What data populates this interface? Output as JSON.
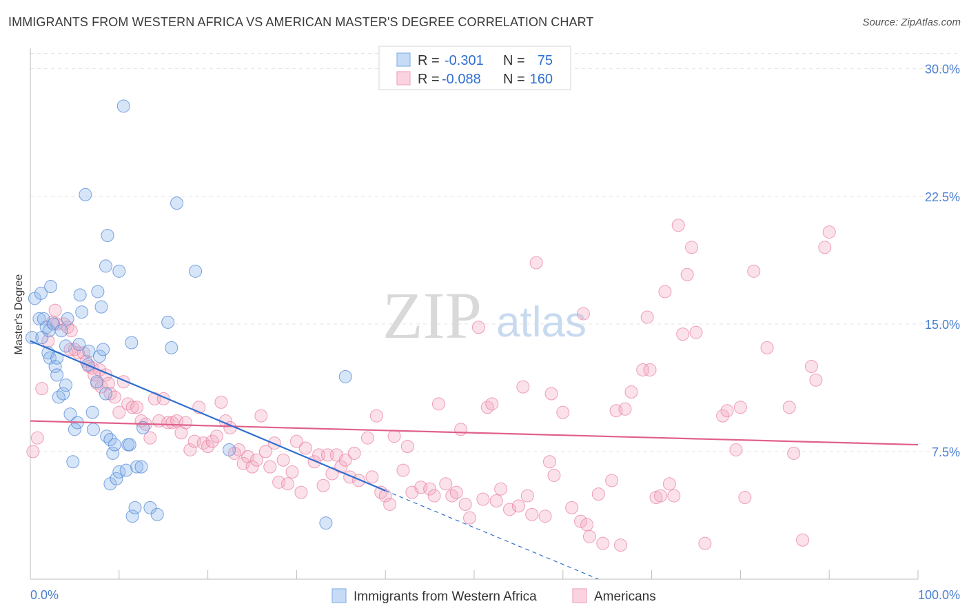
{
  "chart_data": {
    "type": "scatter",
    "title": "IMMIGRANTS FROM WESTERN AFRICA VS AMERICAN MASTER'S DEGREE CORRELATION CHART",
    "source": "Source: ZipAtlas.com",
    "xlabel": "",
    "ylabel": "Master's Degree",
    "xlim": [
      0,
      100
    ],
    "ylim": [
      0,
      31
    ],
    "x_tick_labels": [
      "0.0%",
      "100.0%"
    ],
    "y_ticks": [
      7.5,
      15.0,
      22.5,
      30.0
    ],
    "y_tick_labels": [
      "7.5%",
      "15.0%",
      "22.5%",
      "30.0%"
    ],
    "watermark": {
      "zip": "ZIP",
      "atlas": "atlas"
    },
    "legend": {
      "r_label": "R =",
      "n_label": "N =",
      "entries": [
        {
          "r": "-0.301",
          "n": "75",
          "color": "#8ab4ea"
        },
        {
          "r": "-0.088",
          "n": "160",
          "color": "#f4a8c0"
        }
      ]
    },
    "series": [
      {
        "name": "Immigrants from Western Africa",
        "color": "#8ab4ea",
        "line_color": "#2f6fd0",
        "trend": {
          "x0": 0,
          "y0": 14.0,
          "x1": 40,
          "y1": 5.2,
          "dash_to_x": 64,
          "dash_to_y": 0
        },
        "points": [
          [
            0.2,
            14.2
          ],
          [
            0.5,
            16.5
          ],
          [
            1.0,
            15.3
          ],
          [
            1.2,
            16.8
          ],
          [
            1.3,
            14.2
          ],
          [
            1.5,
            15.3
          ],
          [
            1.8,
            14.8
          ],
          [
            2.1,
            14.6
          ],
          [
            2.0,
            13.3
          ],
          [
            2.2,
            13.0
          ],
          [
            2.3,
            17.2
          ],
          [
            2.6,
            15.0
          ],
          [
            2.8,
            12.5
          ],
          [
            3.0,
            13.0
          ],
          [
            3.0,
            12.0
          ],
          [
            3.2,
            10.7
          ],
          [
            3.5,
            14.6
          ],
          [
            3.7,
            10.9
          ],
          [
            4.0,
            13.7
          ],
          [
            4.0,
            11.4
          ],
          [
            4.2,
            15.3
          ],
          [
            4.5,
            9.7
          ],
          [
            4.8,
            6.9
          ],
          [
            5.0,
            8.8
          ],
          [
            5.3,
            9.2
          ],
          [
            5.5,
            13.8
          ],
          [
            5.6,
            16.7
          ],
          [
            5.8,
            15.7
          ],
          [
            6.2,
            22.6
          ],
          [
            6.5,
            12.6
          ],
          [
            6.6,
            13.4
          ],
          [
            7.0,
            9.8
          ],
          [
            7.1,
            8.8
          ],
          [
            7.5,
            11.6
          ],
          [
            7.6,
            16.9
          ],
          [
            7.8,
            13.1
          ],
          [
            8.0,
            16.0
          ],
          [
            8.2,
            13.5
          ],
          [
            8.5,
            10.9
          ],
          [
            8.5,
            18.4
          ],
          [
            8.6,
            8.4
          ],
          [
            8.7,
            20.2
          ],
          [
            9.0,
            8.2
          ],
          [
            9.0,
            5.6
          ],
          [
            9.3,
            7.4
          ],
          [
            9.5,
            7.9
          ],
          [
            9.7,
            5.9
          ],
          [
            10.0,
            6.3
          ],
          [
            10.0,
            18.1
          ],
          [
            10.5,
            27.8
          ],
          [
            10.8,
            6.4
          ],
          [
            11.0,
            7.9
          ],
          [
            11.2,
            7.9
          ],
          [
            11.4,
            13.9
          ],
          [
            11.5,
            3.7
          ],
          [
            11.8,
            4.2
          ],
          [
            12.0,
            6.6
          ],
          [
            12.5,
            6.6
          ],
          [
            12.7,
            8.9
          ],
          [
            13.5,
            4.2
          ],
          [
            14.3,
            3.8
          ],
          [
            15.5,
            15.1
          ],
          [
            15.9,
            13.6
          ],
          [
            16.5,
            22.1
          ],
          [
            18.6,
            18.1
          ],
          [
            22.4,
            7.6
          ],
          [
            33.3,
            3.3
          ],
          [
            35.5,
            11.9
          ]
        ]
      },
      {
        "name": "Americans",
        "color": "#f4a8c0",
        "line_color": "#e0608a",
        "trend": {
          "x0": 0,
          "y0": 9.3,
          "x1": 100,
          "y1": 7.9
        },
        "points": [
          [
            0.3,
            7.5
          ],
          [
            0.8,
            8.3
          ],
          [
            1.3,
            11.2
          ],
          [
            2.0,
            14.0
          ],
          [
            2.5,
            15.1
          ],
          [
            2.8,
            15.8
          ],
          [
            3.0,
            15.0
          ],
          [
            3.8,
            15.0
          ],
          [
            4.2,
            14.8
          ],
          [
            4.5,
            13.5
          ],
          [
            4.6,
            14.6
          ],
          [
            5.0,
            13.5
          ],
          [
            5.4,
            13.3
          ],
          [
            6.0,
            13.3
          ],
          [
            6.3,
            12.8
          ],
          [
            6.6,
            12.5
          ],
          [
            7.0,
            12.4
          ],
          [
            7.2,
            12.0
          ],
          [
            7.5,
            11.5
          ],
          [
            7.8,
            12.3
          ],
          [
            8.0,
            11.3
          ],
          [
            8.5,
            12.0
          ],
          [
            8.8,
            11.5
          ],
          [
            9.0,
            10.9
          ],
          [
            9.5,
            10.7
          ],
          [
            10.0,
            9.8
          ],
          [
            10.5,
            11.6
          ],
          [
            11.0,
            10.3
          ],
          [
            11.5,
            10.1
          ],
          [
            12.0,
            10.1
          ],
          [
            12.5,
            9.3
          ],
          [
            13.0,
            9.1
          ],
          [
            13.5,
            8.3
          ],
          [
            14.0,
            10.6
          ],
          [
            14.5,
            9.3
          ],
          [
            15.0,
            10.6
          ],
          [
            15.5,
            9.2
          ],
          [
            16.0,
            9.2
          ],
          [
            16.5,
            9.3
          ],
          [
            17.0,
            8.6
          ],
          [
            17.5,
            9.2
          ],
          [
            18.0,
            7.6
          ],
          [
            18.5,
            8.1
          ],
          [
            19.0,
            10.1
          ],
          [
            19.5,
            8.0
          ],
          [
            20.0,
            7.8
          ],
          [
            20.5,
            8.1
          ],
          [
            21.0,
            8.4
          ],
          [
            21.5,
            10.4
          ],
          [
            22.0,
            9.3
          ],
          [
            22.5,
            8.9
          ],
          [
            23.0,
            7.4
          ],
          [
            23.5,
            7.6
          ],
          [
            24.0,
            6.8
          ],
          [
            24.5,
            7.2
          ],
          [
            25.0,
            6.6
          ],
          [
            25.5,
            7.0
          ],
          [
            26.0,
            9.6
          ],
          [
            26.5,
            7.5
          ],
          [
            27.0,
            6.6
          ],
          [
            27.5,
            8.0
          ],
          [
            28.0,
            5.7
          ],
          [
            28.5,
            7.0
          ],
          [
            29.0,
            5.6
          ],
          [
            29.5,
            6.3
          ],
          [
            30.0,
            8.1
          ],
          [
            30.5,
            5.1
          ],
          [
            31.0,
            7.7
          ],
          [
            32.0,
            6.9
          ],
          [
            32.5,
            7.3
          ],
          [
            33.0,
            5.5
          ],
          [
            33.5,
            7.3
          ],
          [
            34.0,
            6.2
          ],
          [
            34.5,
            7.3
          ],
          [
            35.0,
            6.6
          ],
          [
            35.5,
            7.0
          ],
          [
            36.0,
            6.0
          ],
          [
            36.5,
            7.4
          ],
          [
            37.0,
            5.8
          ],
          [
            38.0,
            8.3
          ],
          [
            38.5,
            6.0
          ],
          [
            39.0,
            9.6
          ],
          [
            39.5,
            5.1
          ],
          [
            40.0,
            4.9
          ],
          [
            40.5,
            4.4
          ],
          [
            41.0,
            8.4
          ],
          [
            42.0,
            6.4
          ],
          [
            42.5,
            7.8
          ],
          [
            43.0,
            5.1
          ],
          [
            44.0,
            5.4
          ],
          [
            45.0,
            5.3
          ],
          [
            45.5,
            4.9
          ],
          [
            46.0,
            10.3
          ],
          [
            46.8,
            5.6
          ],
          [
            47.5,
            4.9
          ],
          [
            48.0,
            5.1
          ],
          [
            48.5,
            8.8
          ],
          [
            49.0,
            4.4
          ],
          [
            49.5,
            3.6
          ],
          [
            50.5,
            14.8
          ],
          [
            51.0,
            4.7
          ],
          [
            51.5,
            10.1
          ],
          [
            52.0,
            10.3
          ],
          [
            52.5,
            4.6
          ],
          [
            53.0,
            5.3
          ],
          [
            54.0,
            4.1
          ],
          [
            55.0,
            4.3
          ],
          [
            55.5,
            11.3
          ],
          [
            56.0,
            4.9
          ],
          [
            56.5,
            3.8
          ],
          [
            57.0,
            18.6
          ],
          [
            58.0,
            3.7
          ],
          [
            58.5,
            6.9
          ],
          [
            58.7,
            10.9
          ],
          [
            59.0,
            6.1
          ],
          [
            60.0,
            9.8
          ],
          [
            61.0,
            4.2
          ],
          [
            62.0,
            3.4
          ],
          [
            62.3,
            15.6
          ],
          [
            62.7,
            3.2
          ],
          [
            63.0,
            2.5
          ],
          [
            64.0,
            5.0
          ],
          [
            64.5,
            2.1
          ],
          [
            65.5,
            5.8
          ],
          [
            66.0,
            9.9
          ],
          [
            66.5,
            2.0
          ],
          [
            67.0,
            10.0
          ],
          [
            67.7,
            11.0
          ],
          [
            69.0,
            12.3
          ],
          [
            69.5,
            15.4
          ],
          [
            69.8,
            12.3
          ],
          [
            70.5,
            4.8
          ],
          [
            71.0,
            4.9
          ],
          [
            71.5,
            16.9
          ],
          [
            72.0,
            5.6
          ],
          [
            72.5,
            4.9
          ],
          [
            73.0,
            20.8
          ],
          [
            73.5,
            14.4
          ],
          [
            74.0,
            17.9
          ],
          [
            74.5,
            19.5
          ],
          [
            75.0,
            14.5
          ],
          [
            76.0,
            2.1
          ],
          [
            78.0,
            9.6
          ],
          [
            78.5,
            9.9
          ],
          [
            79.5,
            7.6
          ],
          [
            80.0,
            10.1
          ],
          [
            80.5,
            4.8
          ],
          [
            81.5,
            18.1
          ],
          [
            83.0,
            13.6
          ],
          [
            85.5,
            10.1
          ],
          [
            86.0,
            7.4
          ],
          [
            87.0,
            2.3
          ],
          [
            88.0,
            12.5
          ],
          [
            88.5,
            11.7
          ],
          [
            89.5,
            19.5
          ],
          [
            90.0,
            20.4
          ]
        ]
      }
    ]
  },
  "bottom_legend": [
    {
      "label": "Immigrants from Western Africa",
      "color": "#8ab4ea"
    },
    {
      "label": "Americans",
      "color": "#f4a8c0"
    }
  ]
}
